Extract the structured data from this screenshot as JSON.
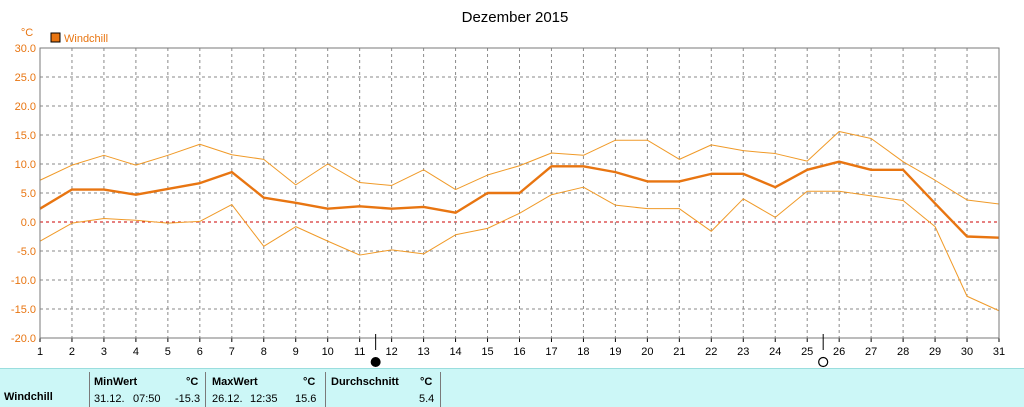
{
  "colors": {
    "accent": "#e87511",
    "thin": "#f09a28",
    "zero_line": "#cc0000",
    "grid": "#8a8a8a",
    "stats_bg": "#ccf7f7"
  },
  "chart_data": {
    "type": "line",
    "title": "Dezember 2015",
    "ylabel": "°C",
    "ylim": [
      -20,
      30
    ],
    "ytick_step": 5,
    "grid": true,
    "legend_position": "top-left",
    "x": [
      1,
      2,
      3,
      4,
      5,
      6,
      7,
      8,
      9,
      10,
      11,
      12,
      13,
      14,
      15,
      16,
      17,
      18,
      19,
      20,
      21,
      22,
      23,
      24,
      25,
      26,
      27,
      28,
      29,
      30,
      31
    ],
    "xtick_labels": [
      "1",
      "2",
      "3",
      "4",
      "5",
      "6",
      "7",
      "8",
      "9",
      "10",
      "11",
      "12",
      "13",
      "14",
      "15",
      "16",
      "17",
      "18",
      "19",
      "20",
      "21",
      "22",
      "23",
      "24",
      "25",
      "26",
      "27",
      "28",
      "29",
      "30",
      "31"
    ],
    "ytick_labels": [
      "30.0",
      "25.0",
      "20.0",
      "15.0",
      "10.0",
      "5.0",
      "0.0",
      "-5.0",
      "-10.0",
      "-15.0",
      "-20.0"
    ],
    "series": [
      {
        "name": "Windchill",
        "role": "mean",
        "values": [
          2.3,
          5.6,
          5.6,
          4.7,
          5.7,
          6.7,
          8.6,
          4.2,
          3.3,
          2.3,
          2.7,
          2.3,
          2.6,
          1.6,
          5.0,
          5.0,
          9.6,
          9.6,
          8.6,
          7.0,
          7.0,
          8.3,
          8.3,
          6.0,
          9.0,
          10.4,
          9.0,
          9.0,
          3.2,
          -2.5,
          -2.7
        ]
      },
      {
        "role": "max",
        "values": [
          7.2,
          9.8,
          11.5,
          9.8,
          11.5,
          13.4,
          11.6,
          10.8,
          6.4,
          10.0,
          6.8,
          6.3,
          9.0,
          5.6,
          8.1,
          9.7,
          11.9,
          11.5,
          14.1,
          14.1,
          10.8,
          13.3,
          12.3,
          11.8,
          10.5,
          15.6,
          14.4,
          10.4,
          7.2,
          3.8,
          3.1
        ]
      },
      {
        "role": "min",
        "values": [
          -3.3,
          -0.2,
          0.6,
          0.3,
          -0.2,
          0.1,
          3.0,
          -4.2,
          -0.8,
          -3.3,
          -5.7,
          -4.8,
          -5.5,
          -2.2,
          -1.1,
          1.5,
          4.7,
          6.0,
          2.9,
          2.3,
          2.3,
          -1.6,
          4.0,
          0.8,
          5.3,
          5.3,
          4.5,
          3.7,
          -0.8,
          -12.8,
          -15.3
        ]
      }
    ],
    "markers": [
      {
        "x": 11.5,
        "symbol": "full-moon"
      },
      {
        "x": 25.5,
        "symbol": "new-moon"
      }
    ]
  },
  "stats": {
    "row_label": "Windchill",
    "min": {
      "header": "MinWert",
      "unit": "°C",
      "date": "31.12.",
      "time": "07:50",
      "value": "-15.3"
    },
    "max": {
      "header": "MaxWert",
      "unit": "°C",
      "date": "26.12.",
      "time": "12:35",
      "value": "15.6"
    },
    "avg": {
      "header": "Durchschnitt",
      "unit": "°C",
      "value": "5.4"
    }
  }
}
